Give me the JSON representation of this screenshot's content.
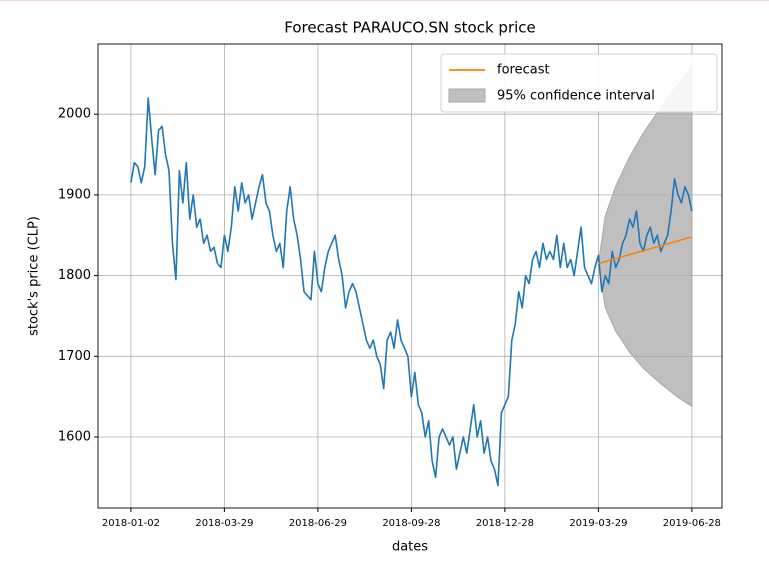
{
  "chart_data": {
    "type": "line",
    "title": "Forecast PARAUCO.SN stock price",
    "x_label": "dates",
    "y_label": "stock's price (CLP)",
    "xlim": [
      -9.5,
      170.7
    ],
    "xticks": [
      {
        "value": 0,
        "label": "2018-01-02"
      },
      {
        "value": 27,
        "label": "2018-03-29"
      },
      {
        "value": 54,
        "label": "2018-06-29"
      },
      {
        "value": 81,
        "label": "2018-09-28"
      },
      {
        "value": 108,
        "label": "2018-12-28"
      },
      {
        "value": 135,
        "label": "2019-03-29"
      },
      {
        "value": 162,
        "label": "2019-06-28"
      }
    ],
    "ylim": [
      1512,
      2087
    ],
    "yticks": [
      1600,
      1700,
      1800,
      1900,
      2000
    ],
    "grid": true,
    "legend": "upper right",
    "series": [
      {
        "color": "#1f77b4",
        "values": [
          1915,
          1940,
          1935,
          1915,
          1935,
          2020,
          1970,
          1925,
          1980,
          1985,
          1950,
          1930,
          1840,
          1795,
          1930,
          1890,
          1940,
          1870,
          1900,
          1860,
          1870,
          1840,
          1850,
          1830,
          1835,
          1815,
          1810,
          1850,
          1830,
          1860,
          1910,
          1880,
          1915,
          1890,
          1900,
          1870,
          1890,
          1910,
          1925,
          1890,
          1880,
          1850,
          1830,
          1840,
          1810,
          1880,
          1910,
          1870,
          1850,
          1820,
          1780,
          1775,
          1770,
          1830,
          1790,
          1780,
          1810,
          1830,
          1840,
          1850,
          1820,
          1800,
          1760,
          1780,
          1790,
          1780,
          1760,
          1740,
          1720,
          1710,
          1720,
          1700,
          1690,
          1660,
          1720,
          1730,
          1710,
          1745,
          1720,
          1710,
          1700,
          1650,
          1680,
          1640,
          1630,
          1600,
          1620,
          1570,
          1550,
          1600,
          1610,
          1600,
          1590,
          1600,
          1560,
          1580,
          1600,
          1580,
          1610,
          1640,
          1600,
          1620,
          1580,
          1600,
          1570,
          1560,
          1540,
          1630,
          1640,
          1650,
          1720,
          1740,
          1780,
          1760,
          1800,
          1790,
          1820,
          1830,
          1810,
          1840,
          1820,
          1830,
          1820,
          1850,
          1810,
          1840,
          1810,
          1820,
          1800,
          1830,
          1860,
          1810,
          1800,
          1790,
          1810,
          1825,
          1780,
          1800,
          1790,
          1830,
          1810,
          1820,
          1840,
          1850,
          1870,
          1860,
          1880,
          1840,
          1830,
          1850,
          1860,
          1840,
          1850,
          1830,
          1840,
          1850,
          1880,
          1920,
          1900,
          1890,
          1910,
          1900,
          1880
        ]
      },
      {
        "name": "forecast",
        "color": "#ff7f0e",
        "x": [
          135,
          162
        ],
        "values": [
          1815,
          1848
        ]
      }
    ],
    "confidence_interval": {
      "name": "95% confidence interval",
      "color": "#aaaaaa",
      "x": [
        135,
        137,
        140,
        144,
        148,
        153,
        158,
        162
      ],
      "upper": [
        1815,
        1874,
        1911,
        1947,
        1977,
        2008,
        2037,
        2058
      ],
      "lower": [
        1815,
        1760,
        1731,
        1705,
        1685,
        1666,
        1649,
        1638
      ]
    }
  }
}
